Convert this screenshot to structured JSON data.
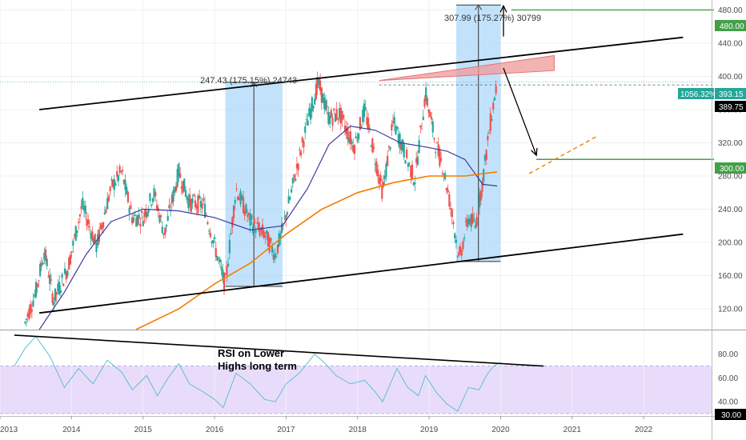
{
  "colors": {
    "up": "#26a69a",
    "down": "#ef5350",
    "ma_fast": "#3c3c9e",
    "ma_slow": "#f57c00",
    "target_green": "#43a047",
    "measure_fill": "#90caf9",
    "resistance_fill": "#ef9a9a",
    "rsi_line": "#5bc0d0",
    "rsi_band": "#e9dcfb",
    "axis_text": "#4a4a4a"
  },
  "annotations": {
    "measure_left": "247.43 (175.15%) 24743",
    "measure_right": "307.99 (175.27%) 30799",
    "rsi_note_line1": "RSI on Lower",
    "rsi_note_line2": "Highs long term"
  },
  "price_tags": {
    "target_high": "480.00",
    "target_low": "300.00",
    "pct_label": "1056.32%",
    "last_price": "393.15",
    "prev_close": "389.75",
    "rsi_low": "30.00"
  },
  "chart_data": [
    {
      "type": "candlestick",
      "title": "",
      "x_ticks": [
        "2013",
        "2014",
        "2015",
        "2016",
        "2017",
        "2018",
        "2019",
        "2020",
        "2021",
        "2022"
      ],
      "xlim": [
        2013.0,
        2022.95
      ],
      "ylim": [
        95,
        492
      ],
      "y_ticks": [
        120,
        160,
        200,
        240,
        280,
        320,
        360,
        400,
        440,
        480
      ],
      "price_path": [
        [
          2013.35,
          103
        ],
        [
          2013.5,
          140
        ],
        [
          2013.62,
          190
        ],
        [
          2013.75,
          130
        ],
        [
          2013.95,
          170
        ],
        [
          2014.15,
          245
        ],
        [
          2014.35,
          195
        ],
        [
          2014.55,
          265
        ],
        [
          2014.7,
          285
        ],
        [
          2014.85,
          230
        ],
        [
          2015.0,
          230
        ],
        [
          2015.15,
          260
        ],
        [
          2015.3,
          210
        ],
        [
          2015.5,
          285
        ],
        [
          2015.65,
          248
        ],
        [
          2015.85,
          245
        ],
        [
          2016.05,
          180
        ],
        [
          2016.15,
          148
        ],
        [
          2016.3,
          265
        ],
        [
          2016.5,
          225
        ],
        [
          2016.7,
          210
        ],
        [
          2016.85,
          185
        ],
        [
          2016.95,
          215
        ],
        [
          2017.1,
          270
        ],
        [
          2017.3,
          345
        ],
        [
          2017.45,
          392
        ],
        [
          2017.6,
          350
        ],
        [
          2017.75,
          355
        ],
        [
          2017.95,
          315
        ],
        [
          2018.1,
          360
        ],
        [
          2018.25,
          300
        ],
        [
          2018.35,
          260
        ],
        [
          2018.5,
          345
        ],
        [
          2018.65,
          310
        ],
        [
          2018.8,
          275
        ],
        [
          2018.95,
          380
        ],
        [
          2019.1,
          315
        ],
        [
          2019.2,
          290
        ],
        [
          2019.35,
          220
        ],
        [
          2019.42,
          178
        ],
        [
          2019.55,
          230
        ],
        [
          2019.65,
          220
        ],
        [
          2019.75,
          275
        ],
        [
          2019.85,
          340
        ],
        [
          2019.95,
          393
        ]
      ],
      "ma_fast": [
        [
          2013.55,
          95
        ],
        [
          2013.9,
          140
        ],
        [
          2014.2,
          185
        ],
        [
          2014.55,
          225
        ],
        [
          2015.0,
          240
        ],
        [
          2015.5,
          238
        ],
        [
          2016.0,
          230
        ],
        [
          2016.5,
          215
        ],
        [
          2016.95,
          220
        ],
        [
          2017.3,
          265
        ],
        [
          2017.6,
          318
        ],
        [
          2017.9,
          340
        ],
        [
          2018.25,
          335
        ],
        [
          2018.6,
          320
        ],
        [
          2018.95,
          315
        ],
        [
          2019.25,
          310
        ],
        [
          2019.5,
          300
        ],
        [
          2019.75,
          270
        ],
        [
          2019.95,
          268
        ]
      ],
      "ma_slow": [
        [
          2014.9,
          95
        ],
        [
          2015.5,
          120
        ],
        [
          2016.0,
          150
        ],
        [
          2016.5,
          175
        ],
        [
          2017.0,
          210
        ],
        [
          2017.5,
          240
        ],
        [
          2018.0,
          260
        ],
        [
          2018.5,
          272
        ],
        [
          2019.0,
          280
        ],
        [
          2019.5,
          280
        ],
        [
          2019.95,
          285
        ]
      ],
      "channel_upper": [
        [
          2013.55,
          360
        ],
        [
          2022.55,
          447
        ]
      ],
      "channel_lower": [
        [
          2013.55,
          115
        ],
        [
          2022.55,
          210
        ]
      ],
      "measure_boxes": [
        {
          "x0": 2016.15,
          "x1": 2016.95,
          "y0": 147,
          "y1": 393
        },
        {
          "x0": 2019.38,
          "x1": 2020.0,
          "y0": 177,
          "y1": 486
        }
      ],
      "resistance_wedge": [
        [
          2018.3,
          395
        ],
        [
          2020.75,
          407
        ],
        [
          2020.75,
          425
        ]
      ],
      "arrows": [
        {
          "from": [
            2020.04,
            448
          ],
          "to": [
            2020.04,
            485
          ]
        },
        {
          "from": [
            2020.04,
            410
          ],
          "to": [
            2020.5,
            305
          ]
        }
      ],
      "target_lines": [
        {
          "value": 480,
          "x_start": 2020.15
        },
        {
          "value": 300,
          "x_start": 2020.5
        }
      ],
      "projection": [
        [
          2020.4,
          283
        ],
        [
          2021.35,
          328
        ]
      ]
    },
    {
      "type": "line",
      "title": "",
      "ylim": [
        28,
        100
      ],
      "y_ticks": [
        40,
        60,
        80
      ],
      "band": [
        30,
        70
      ],
      "trendline": [
        [
          2013.2,
          96
        ],
        [
          2020.6,
          70
        ]
      ],
      "rsi": [
        [
          2013.2,
          70
        ],
        [
          2013.35,
          85
        ],
        [
          2013.5,
          95
        ],
        [
          2013.7,
          78
        ],
        [
          2013.9,
          52
        ],
        [
          2014.1,
          68
        ],
        [
          2014.3,
          55
        ],
        [
          2014.5,
          75
        ],
        [
          2014.7,
          65
        ],
        [
          2014.85,
          50
        ],
        [
          2015.05,
          62
        ],
        [
          2015.2,
          45
        ],
        [
          2015.35,
          60
        ],
        [
          2015.5,
          72
        ],
        [
          2015.65,
          55
        ],
        [
          2015.85,
          48
        ],
        [
          2016.0,
          42
        ],
        [
          2016.12,
          35
        ],
        [
          2016.3,
          64
        ],
        [
          2016.5,
          55
        ],
        [
          2016.7,
          42
        ],
        [
          2016.85,
          40
        ],
        [
          2017.0,
          55
        ],
        [
          2017.2,
          65
        ],
        [
          2017.4,
          80
        ],
        [
          2017.55,
          72
        ],
        [
          2017.7,
          62
        ],
        [
          2017.9,
          55
        ],
        [
          2018.1,
          58
        ],
        [
          2018.25,
          48
        ],
        [
          2018.35,
          40
        ],
        [
          2018.55,
          68
        ],
        [
          2018.7,
          52
        ],
        [
          2018.85,
          45
        ],
        [
          2018.95,
          62
        ],
        [
          2019.1,
          48
        ],
        [
          2019.25,
          38
        ],
        [
          2019.4,
          32
        ],
        [
          2019.55,
          52
        ],
        [
          2019.7,
          50
        ],
        [
          2019.8,
          62
        ],
        [
          2019.9,
          70
        ],
        [
          2020.0,
          73
        ]
      ]
    }
  ]
}
